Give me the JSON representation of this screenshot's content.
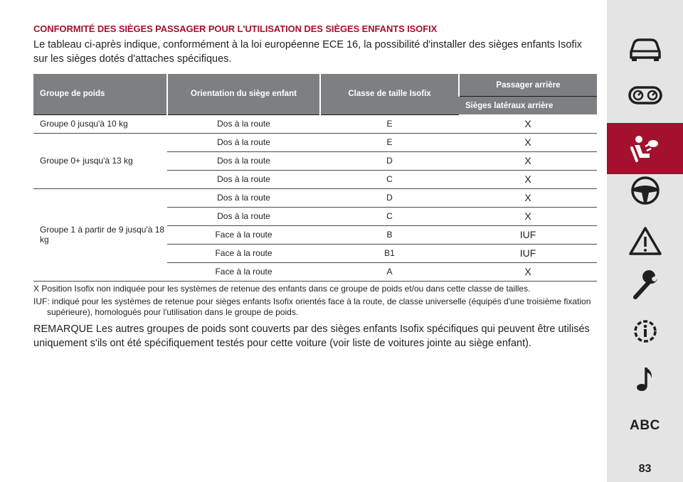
{
  "section_title": "CONFORMITÉ DES SIÈGES PASSAGER POUR L'UTILISATION DES SIÈGES ENFANTS ISOFIX",
  "intro": "Le tableau ci-après indique, conformément à la loi européenne ECE 16, la possibilité d'installer des sièges enfants Isofix sur les sièges dotés d'attaches spécifiques.",
  "table": {
    "headers": {
      "weight_group": "Groupe de poids",
      "orientation": "Orientation du siège enfant",
      "size_class": "Classe de taille Isofix",
      "rear_passenger": "Passager arrière",
      "rear_side_seats": "Sièges latéraux arrière"
    },
    "groups": [
      {
        "label": "Groupe 0 jusqu'à 10 kg",
        "rows": [
          {
            "orientation": "Dos à la route",
            "class": "E",
            "value": "X"
          }
        ]
      },
      {
        "label": "Groupe 0+ jusqu'à 13 kg",
        "rows": [
          {
            "orientation": "Dos à la route",
            "class": "E",
            "value": "X"
          },
          {
            "orientation": "Dos à la route",
            "class": "D",
            "value": "X"
          },
          {
            "orientation": "Dos à la route",
            "class": "C",
            "value": "X"
          }
        ]
      },
      {
        "label": "Groupe 1 à partir de 9 jusqu'à 18 kg",
        "rows": [
          {
            "orientation": "Dos à la route",
            "class": "D",
            "value": "X"
          },
          {
            "orientation": "Dos à la route",
            "class": "C",
            "value": "X"
          },
          {
            "orientation": "Face à la route",
            "class": "B",
            "value": "IUF"
          },
          {
            "orientation": "Face à la route",
            "class": "B1",
            "value": "IUF"
          },
          {
            "orientation": "Face à la route",
            "class": "A",
            "value": "X"
          }
        ]
      }
    ]
  },
  "notes": [
    "X Position Isofix non indiquée pour les systèmes de retenue des enfants dans ce groupe de poids et/ou dans cette classe de tailles.",
    "IUF: indiqué pour les systèmes de retenue pour sièges enfants Isofix orientés face à la route, de classe universelle (équipés d'une troisième fixation supérieure), homologués pour l'utilisation dans le groupe de poids."
  ],
  "remark": "REMARQUE Les autres groupes de poids sont couverts par des sièges enfants Isofix spécifiques qui peuvent être utilisés uniquement s'ils ont été spécifiquement testés pour cette voiture (voir liste de voitures jointe au siège enfant).",
  "sidebar": {
    "items": [
      {
        "icon": "car-icon"
      },
      {
        "icon": "dashboard-icon"
      },
      {
        "icon": "airbag-passenger-icon",
        "active": true
      },
      {
        "icon": "steering-wheel-icon"
      },
      {
        "icon": "warning-triangle-icon"
      },
      {
        "icon": "wrench-icon"
      },
      {
        "icon": "info-gear-icon"
      },
      {
        "icon": "music-note-icon"
      },
      {
        "icon": "abc-index-icon",
        "label": "ABC"
      }
    ],
    "active_color": "#a3112f"
  },
  "page_number": "83"
}
